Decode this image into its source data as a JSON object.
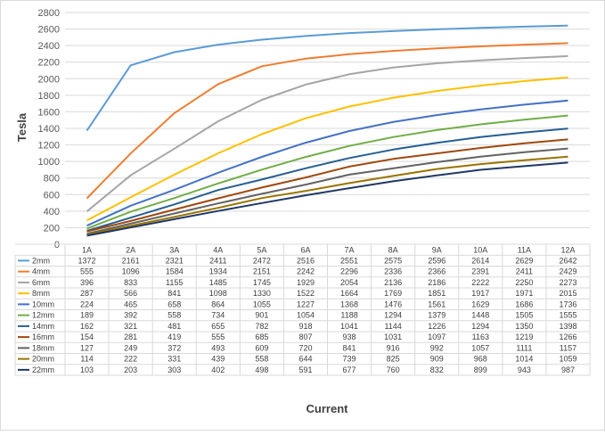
{
  "chart_data": {
    "type": "line",
    "xlabel": "Current",
    "ylabel": "Tesla",
    "ylim": [
      0,
      2800
    ],
    "yticks": [
      0,
      200,
      400,
      600,
      800,
      1000,
      1200,
      1400,
      1600,
      1800,
      2000,
      2200,
      2400,
      2600,
      2800
    ],
    "grid": true,
    "legend": "data-table",
    "categories": [
      "1A",
      "2A",
      "3A",
      "4A",
      "5A",
      "6A",
      "7A",
      "8A",
      "9A",
      "10A",
      "11A",
      "12A"
    ],
    "series": [
      {
        "name": "2mm",
        "color": "#5b9bd5",
        "values": [
          1372,
          2161,
          2321,
          2411,
          2472,
          2516,
          2551,
          2575,
          2596,
          2614,
          2629,
          2642
        ]
      },
      {
        "name": "4mm",
        "color": "#ed7d31",
        "values": [
          555,
          1096,
          1584,
          1934,
          2151,
          2242,
          2296,
          2336,
          2366,
          2391,
          2411,
          2429
        ]
      },
      {
        "name": "6mm",
        "color": "#a5a5a5",
        "values": [
          396,
          833,
          1155,
          1485,
          1745,
          1929,
          2054,
          2136,
          2186,
          2222,
          2250,
          2273
        ]
      },
      {
        "name": "8mm",
        "color": "#ffc000",
        "values": [
          287,
          566,
          841,
          1098,
          1330,
          1522,
          1664,
          1769,
          1851,
          1917,
          1971,
          2015
        ]
      },
      {
        "name": "10mm",
        "color": "#4472c4",
        "values": [
          224,
          465,
          658,
          864,
          1055,
          1227,
          1368,
          1476,
          1561,
          1629,
          1686,
          1736
        ]
      },
      {
        "name": "12mm",
        "color": "#70ad47",
        "values": [
          189,
          392,
          558,
          734,
          901,
          1054,
          1188,
          1294,
          1379,
          1448,
          1505,
          1555
        ]
      },
      {
        "name": "14mm",
        "color": "#255e91",
        "values": [
          162,
          321,
          481,
          655,
          782,
          918,
          1041,
          1144,
          1226,
          1294,
          1350,
          1398
        ]
      },
      {
        "name": "16mm",
        "color": "#9e480e",
        "values": [
          154,
          281,
          419,
          555,
          685,
          807,
          938,
          1031,
          1097,
          1163,
          1219,
          1266
        ]
      },
      {
        "name": "18mm",
        "color": "#636363",
        "values": [
          127,
          249,
          372,
          493,
          609,
          720,
          841,
          916,
          992,
          1057,
          1111,
          1157
        ]
      },
      {
        "name": "20mm",
        "color": "#997300",
        "values": [
          114,
          222,
          331,
          439,
          558,
          644,
          739,
          825,
          909,
          968,
          1014,
          1059
        ]
      },
      {
        "name": "22mm",
        "color": "#203864",
        "values": [
          103,
          203,
          303,
          402,
          498,
          591,
          677,
          760,
          832,
          899,
          943,
          987
        ]
      }
    ]
  }
}
